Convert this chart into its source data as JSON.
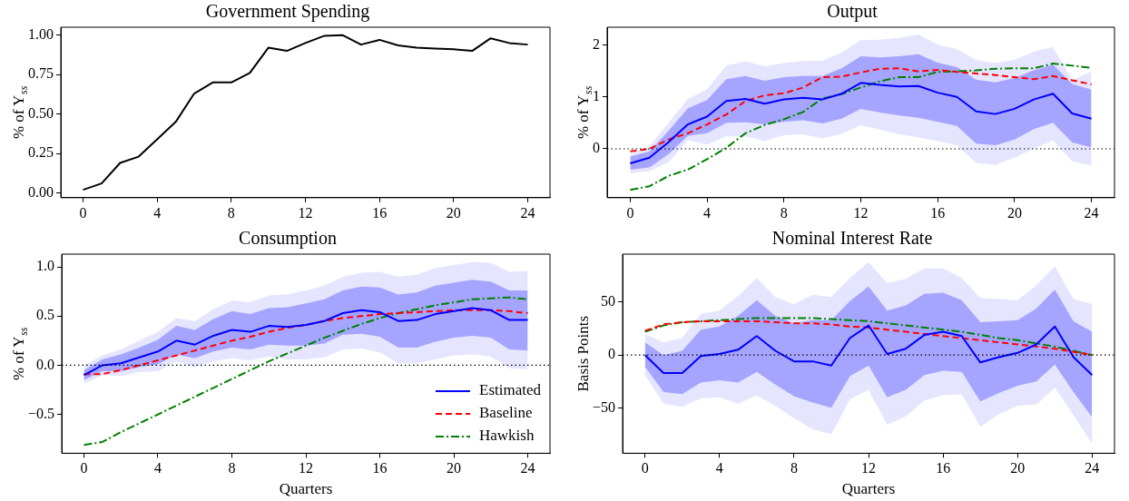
{
  "chart_data": [
    {
      "type": "line",
      "title": "Government Spending",
      "ylabel": "% of Y$_{ss}$",
      "x": [
        0,
        1,
        2,
        3,
        4,
        5,
        6,
        7,
        8,
        9,
        10,
        11,
        12,
        13,
        14,
        15,
        16,
        17,
        18,
        19,
        20,
        21,
        22,
        23,
        24
      ],
      "xlim": [
        -1.2,
        25.2
      ],
      "xticks": [
        0,
        4,
        8,
        12,
        16,
        20,
        24
      ],
      "ylim": [
        -0.03,
        1.05
      ],
      "yticks": [
        {
          "value": 0,
          "label": "0.00"
        },
        {
          "value": 0.25,
          "label": "0.25"
        },
        {
          "value": 0.5,
          "label": "0.50"
        },
        {
          "value": 0.75,
          "label": "0.75"
        },
        {
          "value": 1,
          "label": "1.00"
        }
      ],
      "grid": false,
      "legend": false,
      "marker": "none",
      "series": [
        {
          "color": "#000000",
          "line_style": "solid",
          "values": [
            0.02,
            0.06,
            0.19,
            0.23,
            0.34,
            0.45,
            0.63,
            0.7,
            0.7,
            0.76,
            0.92,
            0.9,
            0.95,
            0.995,
            1.0,
            0.94,
            0.97,
            0.935,
            0.92,
            0.915,
            0.91,
            0.9,
            0.98,
            0.95,
            0.94
          ]
        }
      ]
    },
    {
      "type": "line",
      "title": "Output",
      "ylabel": "% of Y$_{ss}$",
      "x": [
        0,
        1,
        2,
        3,
        4,
        5,
        6,
        7,
        8,
        9,
        10,
        11,
        12,
        13,
        14,
        15,
        16,
        17,
        18,
        19,
        20,
        21,
        22,
        23,
        24
      ],
      "xlim": [
        -1.2,
        25.2
      ],
      "xticks": [
        0,
        4,
        8,
        12,
        16,
        20,
        24
      ],
      "ylim": [
        -0.94,
        2.34
      ],
      "yticks": [
        0,
        1,
        2
      ],
      "grid": false,
      "legend": false,
      "marker": "none",
      "ref_lines": [
        {
          "axis": "y",
          "value": 0,
          "color": "#000000",
          "line_style": "dotted"
        }
      ],
      "series": [
        {
          "color": "#e5e5ff",
          "values": [
            null,
            null,
            null,
            null,
            null,
            null,
            null,
            null,
            null,
            null,
            null,
            null,
            null,
            null,
            null,
            null,
            null,
            null,
            null,
            null,
            null,
            null,
            null,
            null,
            null
          ],
          "lower": [
            -0.47,
            -0.43,
            -0.26,
            0.17,
            0.08,
            0.24,
            0.24,
            0.15,
            0.26,
            0.28,
            0.2,
            0.29,
            0.46,
            0.37,
            0.28,
            0.22,
            0.15,
            0.07,
            -0.27,
            -0.31,
            -0.17,
            0.01,
            0.16,
            -0.24,
            -0.32
          ],
          "upper": [
            -0.1,
            0.05,
            0.5,
            0.96,
            1.15,
            1.6,
            1.68,
            1.59,
            1.65,
            1.69,
            1.7,
            1.85,
            2.09,
            2.1,
            2.14,
            2.2,
            2.01,
            1.92,
            1.71,
            1.65,
            1.71,
            1.87,
            1.96,
            1.32,
            1.49
          ]
        },
        {
          "color": "#0000ff",
          "line_style": "solid",
          "values": [
            -0.28,
            -0.17,
            0.13,
            0.47,
            0.62,
            0.92,
            0.96,
            0.87,
            0.95,
            0.98,
            0.95,
            1.06,
            1.27,
            1.23,
            1.2,
            1.21,
            1.08,
            1.0,
            0.72,
            0.67,
            0.77,
            0.95,
            1.06,
            0.68,
            0.58
          ],
          "lower": [
            -0.4,
            -0.36,
            -0.1,
            0.25,
            0.3,
            0.5,
            0.51,
            0.47,
            0.52,
            0.55,
            0.49,
            0.58,
            0.77,
            0.7,
            0.64,
            0.6,
            0.52,
            0.44,
            0.1,
            0.07,
            0.18,
            0.38,
            0.5,
            0.12,
            0.03
          ],
          "upper": [
            -0.15,
            -0.05,
            0.35,
            0.78,
            0.94,
            1.34,
            1.4,
            1.31,
            1.38,
            1.4,
            1.4,
            1.55,
            1.78,
            1.76,
            1.78,
            1.82,
            1.66,
            1.57,
            1.33,
            1.28,
            1.36,
            1.51,
            1.62,
            1.25,
            1.14
          ]
        },
        {
          "color": "#ff0000",
          "line_style": "dashed",
          "values": [
            -0.05,
            0.0,
            0.18,
            0.3,
            0.47,
            0.66,
            0.92,
            1.03,
            1.07,
            1.18,
            1.38,
            1.39,
            1.47,
            1.54,
            1.55,
            1.49,
            1.52,
            1.48,
            1.45,
            1.42,
            1.38,
            1.34,
            1.4,
            1.32,
            1.24
          ]
        },
        {
          "color": "#008000",
          "line_style": "dashdot",
          "values": [
            -0.79,
            -0.72,
            -0.52,
            -0.4,
            -0.2,
            0.02,
            0.3,
            0.46,
            0.57,
            0.71,
            0.97,
            1.05,
            1.18,
            1.3,
            1.38,
            1.38,
            1.48,
            1.49,
            1.51,
            1.54,
            1.55,
            1.55,
            1.64,
            1.6,
            1.56
          ]
        }
      ]
    },
    {
      "type": "line",
      "title": "Consumption",
      "xlabel": "Quarters",
      "ylabel": "% of Y$_{ss}$",
      "x": [
        0,
        1,
        2,
        3,
        4,
        5,
        6,
        7,
        8,
        9,
        10,
        11,
        12,
        13,
        14,
        15,
        16,
        17,
        18,
        19,
        20,
        21,
        22,
        23,
        24
      ],
      "xlim": [
        -1.2,
        25.2
      ],
      "xticks": [
        0,
        4,
        8,
        12,
        16,
        20,
        24
      ],
      "ylim": [
        -0.895,
        1.13
      ],
      "yticks": [
        {
          "value": -0.5,
          "label": "−0.5"
        },
        {
          "value": 0,
          "label": "0.0"
        },
        {
          "value": 0.5,
          "label": "0.5"
        },
        {
          "value": 1,
          "label": "1.0"
        }
      ],
      "grid": false,
      "legend": "lower right",
      "marker": "none",
      "ref_lines": [
        {
          "axis": "y",
          "value": 0,
          "color": "#000000",
          "line_style": "dotted"
        }
      ],
      "series": [
        {
          "color": "#e5e5ff",
          "values": [
            null,
            null,
            null,
            null,
            null,
            null,
            null,
            null,
            null,
            null,
            null,
            null,
            null,
            null,
            null,
            null,
            null,
            null,
            null,
            null,
            null,
            null,
            null,
            null,
            null
          ],
          "lower": [
            -0.19,
            -0.1,
            -0.11,
            -0.07,
            -0.06,
            0.04,
            -0.02,
            0.04,
            0.07,
            0.05,
            0.09,
            0.06,
            0.06,
            0.08,
            0.16,
            0.17,
            0.13,
            0.02,
            0.02,
            0.06,
            0.1,
            0.11,
            0.09,
            -0.03,
            -0.04
          ],
          "upper": [
            0.0,
            0.1,
            0.16,
            0.25,
            0.34,
            0.48,
            0.45,
            0.57,
            0.66,
            0.64,
            0.71,
            0.72,
            0.76,
            0.81,
            0.9,
            0.94,
            0.95,
            0.9,
            0.92,
            0.99,
            1.02,
            1.05,
            1.04,
            0.95,
            0.96
          ]
        },
        {
          "name": "Estimated",
          "color": "#0000ff",
          "line_style": "solid",
          "values": [
            -0.1,
            0.0,
            0.02,
            0.08,
            0.14,
            0.25,
            0.21,
            0.3,
            0.36,
            0.34,
            0.4,
            0.39,
            0.41,
            0.45,
            0.53,
            0.56,
            0.54,
            0.45,
            0.46,
            0.52,
            0.55,
            0.58,
            0.56,
            0.46,
            0.46
          ],
          "lower": [
            -0.15,
            -0.06,
            -0.06,
            -0.02,
            0.01,
            0.11,
            0.07,
            0.14,
            0.18,
            0.16,
            0.21,
            0.2,
            0.2,
            0.22,
            0.31,
            0.32,
            0.29,
            0.18,
            0.18,
            0.24,
            0.28,
            0.3,
            0.28,
            0.16,
            0.15
          ],
          "upper": [
            -0.05,
            0.06,
            0.11,
            0.18,
            0.26,
            0.4,
            0.36,
            0.47,
            0.55,
            0.52,
            0.58,
            0.59,
            0.63,
            0.67,
            0.76,
            0.8,
            0.79,
            0.72,
            0.74,
            0.81,
            0.84,
            0.87,
            0.85,
            0.76,
            0.76
          ]
        },
        {
          "name": "Baseline",
          "color": "#ff0000",
          "line_style": "dashed",
          "values": [
            -0.09,
            -0.09,
            -0.05,
            0.0,
            0.05,
            0.1,
            0.15,
            0.2,
            0.25,
            0.29,
            0.34,
            0.38,
            0.41,
            0.45,
            0.48,
            0.5,
            0.52,
            0.53,
            0.54,
            0.55,
            0.56,
            0.56,
            0.56,
            0.55,
            0.53
          ]
        },
        {
          "name": "Hawkish",
          "color": "#008000",
          "line_style": "dashdot",
          "values": [
            -0.81,
            -0.78,
            -0.68,
            -0.59,
            -0.5,
            -0.41,
            -0.32,
            -0.23,
            -0.14,
            -0.05,
            0.04,
            0.12,
            0.2,
            0.28,
            0.35,
            0.42,
            0.48,
            0.53,
            0.57,
            0.61,
            0.64,
            0.67,
            0.68,
            0.69,
            0.67
          ]
        }
      ]
    },
    {
      "type": "line",
      "title": "Nominal Interest Rate",
      "xlabel": "Quarters",
      "ylabel": "Basis Points",
      "x": [
        0,
        1,
        2,
        3,
        4,
        5,
        6,
        7,
        8,
        9,
        10,
        11,
        12,
        13,
        14,
        15,
        16,
        17,
        18,
        19,
        20,
        21,
        22,
        23,
        24
      ],
      "xlim": [
        -1.2,
        25.2
      ],
      "xticks": [
        0,
        4,
        8,
        12,
        16,
        20,
        24
      ],
      "ylim": [
        -93,
        95.5
      ],
      "yticks": [
        {
          "value": -50,
          "label": "−50"
        },
        0,
        50
      ],
      "grid": false,
      "legend": false,
      "marker": "none",
      "ref_lines": [
        {
          "axis": "y",
          "value": 0,
          "color": "#000000",
          "line_style": "dotted"
        }
      ],
      "series": [
        {
          "color": "#e5e5ff",
          "values": [
            null,
            null,
            null,
            null,
            null,
            null,
            null,
            null,
            null,
            null,
            null,
            null,
            null,
            null,
            null,
            null,
            null,
            null,
            null,
            null,
            null,
            null,
            null,
            null,
            null
          ],
          "lower": [
            -19,
            -46,
            -49,
            -41,
            -40,
            -46,
            -38,
            -48,
            -60,
            -70,
            -75,
            -42,
            -33,
            -66,
            -58,
            -43,
            -38,
            -37,
            -68,
            -56,
            -48,
            -47,
            -31,
            -57,
            -84
          ],
          "upper": [
            20,
            12,
            16,
            39,
            42,
            56,
            73,
            55,
            48,
            57,
            55,
            73,
            88,
            68,
            72,
            82,
            82,
            73,
            54,
            53,
            52,
            66,
            84,
            53,
            48
          ]
        },
        {
          "color": "#0000ff",
          "line_style": "solid",
          "values": [
            0,
            -17,
            -17,
            -1,
            1,
            5,
            18,
            4,
            -6,
            -6,
            -10,
            16,
            28,
            1,
            6,
            19,
            22,
            18,
            -7,
            -2,
            2,
            10,
            27,
            -2,
            -19
          ],
          "lower": [
            -11,
            -35,
            -37,
            -26,
            -24,
            -26,
            -16,
            -28,
            -39,
            -45,
            -50,
            -20,
            -10,
            -40,
            -33,
            -19,
            -15,
            -16,
            -44,
            -36,
            -29,
            -25,
            -9,
            -35,
            -59
          ],
          "upper": [
            12,
            0,
            4,
            24,
            27,
            37,
            52,
            37,
            30,
            33,
            33,
            51,
            65,
            42,
            47,
            58,
            59,
            52,
            31,
            32,
            33,
            44,
            62,
            32,
            22
          ]
        },
        {
          "color": "#ff0000",
          "line_style": "dashed",
          "values": [
            23,
            29,
            31,
            32,
            32,
            32,
            32,
            31,
            30,
            30,
            29,
            27,
            26,
            24,
            22,
            20,
            18,
            16,
            14,
            12,
            10,
            8,
            6,
            3,
            0
          ]
        },
        {
          "color": "#008000",
          "line_style": "dashdot",
          "values": [
            22,
            28,
            31,
            32,
            33,
            34,
            35,
            35,
            35,
            35,
            34,
            33,
            32,
            30,
            28,
            26,
            24,
            22,
            19,
            16,
            14,
            11,
            8,
            4,
            0
          ]
        }
      ]
    }
  ]
}
